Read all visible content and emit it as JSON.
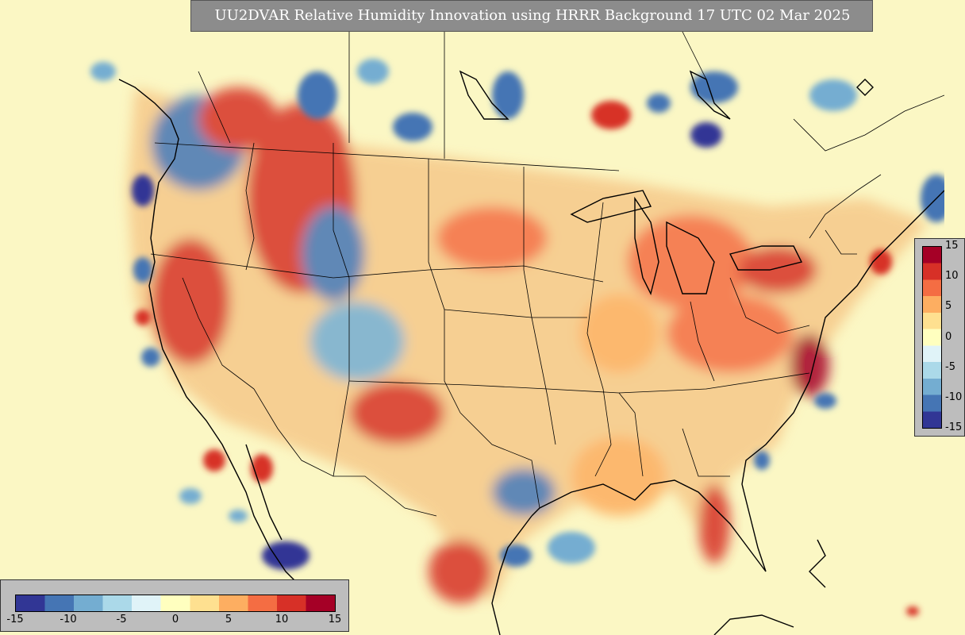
{
  "title": "UU2DVAR Relative Humidity Innovation using HRRR Background 17 UTC 02 Mar 2025",
  "colorbar": {
    "vertical_ticks": [
      "15",
      "10",
      "5",
      "0",
      "-5",
      "-10",
      "-15"
    ],
    "horizontal_ticks": [
      "-15",
      "-10",
      "-5",
      "0",
      "5",
      "10",
      "15"
    ],
    "range": [
      -15,
      15
    ],
    "colors": [
      "#313695",
      "#4575b4",
      "#74add1",
      "#abd9e9",
      "#e0f3f8",
      "#ffffbf",
      "#fee090",
      "#fdae61",
      "#f46d43",
      "#d73027",
      "#a50026"
    ]
  },
  "map": {
    "field": "relative humidity innovation",
    "background_color": "#fbf7c4"
  }
}
